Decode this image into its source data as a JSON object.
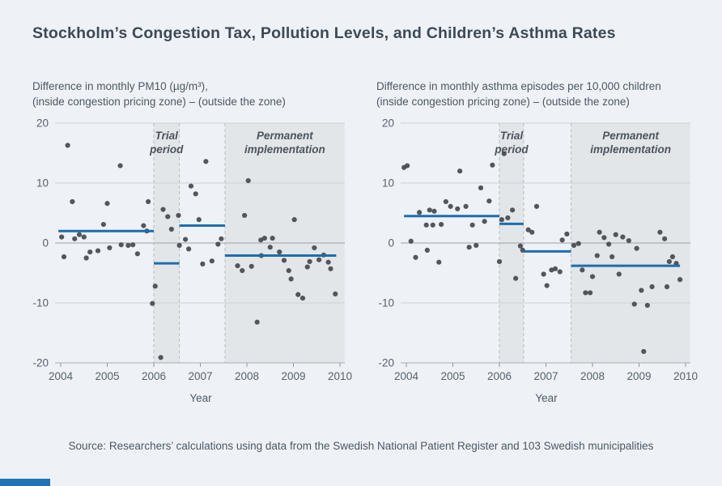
{
  "page": {
    "title": "Stockholm’s Congestion Tax, Pollution Levels, and Children’s Asthma Rates",
    "source": "Source: Researchers’ calculations using data from the Swedish National Patient Register and 103 Swedish municipalities",
    "background_color": "#eef2f7",
    "accent_color": "#2273b6"
  },
  "style": {
    "point_color": "#45494d",
    "mean_line_color": "#1e6dad",
    "band_fill": "#e3e6e9",
    "band_dash_color": "#b6bcc2",
    "grid_color": "#cdd2d7",
    "zero_line_color": "#9aa1a8",
    "axis_color": "#a8aeb4",
    "tick_color": "#8d959c",
    "tick_label_color": "#57606a",
    "band_label_color": "#4b545c"
  },
  "chart_data": [
    {
      "type": "scatter",
      "title_lines": [
        "Difference in monthly PM10 (µg/m³),",
        "(inside congestion pricing zone) – (outside the zone)"
      ],
      "xlabel": "Year",
      "xlim": [
        2003.88,
        2010.1
      ],
      "ylim": [
        -20,
        20
      ],
      "xticks": [
        2004,
        2005,
        2006,
        2007,
        2008,
        2009,
        2010
      ],
      "yticks": [
        20,
        10,
        0,
        -10,
        -20
      ],
      "grid": true,
      "bands": [
        {
          "label_lines": [
            "Trial",
            "period"
          ],
          "x0": 2006.0,
          "x1": 2006.55
        },
        {
          "label_lines": [
            "Permanent",
            "implementation"
          ],
          "x0": 2007.53,
          "x1": 2010.1
        }
      ],
      "mean_segments": [
        {
          "x0": 2003.95,
          "x1": 2006.0,
          "y": 2.0
        },
        {
          "x0": 2006.0,
          "x1": 2006.55,
          "y": -3.4
        },
        {
          "x0": 2006.55,
          "x1": 2007.53,
          "y": 2.9
        },
        {
          "x0": 2007.53,
          "x1": 2009.92,
          "y": -2.1
        }
      ],
      "points": [
        [
          2004.02,
          1.0
        ],
        [
          2004.07,
          -2.3
        ],
        [
          2004.15,
          16.3
        ],
        [
          2004.25,
          6.9
        ],
        [
          2004.3,
          0.7
        ],
        [
          2004.4,
          1.4
        ],
        [
          2004.5,
          1.0
        ],
        [
          2004.55,
          -2.5
        ],
        [
          2004.63,
          -1.5
        ],
        [
          2004.8,
          -1.3
        ],
        [
          2004.92,
          3.1
        ],
        [
          2005.0,
          6.6
        ],
        [
          2005.05,
          -0.8
        ],
        [
          2005.28,
          12.9
        ],
        [
          2005.3,
          -0.3
        ],
        [
          2005.45,
          -0.4
        ],
        [
          2005.55,
          -0.3
        ],
        [
          2005.65,
          -1.8
        ],
        [
          2005.78,
          2.9
        ],
        [
          2005.85,
          2.0
        ],
        [
          2005.88,
          6.9
        ],
        [
          2005.97,
          -10.1
        ],
        [
          2006.03,
          -7.2
        ],
        [
          2006.15,
          -19.1
        ],
        [
          2006.2,
          5.6
        ],
        [
          2006.3,
          4.4
        ],
        [
          2006.38,
          2.3
        ],
        [
          2006.53,
          4.6
        ],
        [
          2006.55,
          -0.4
        ],
        [
          2006.68,
          0.6
        ],
        [
          2006.75,
          -1.0
        ],
        [
          2006.8,
          9.5
        ],
        [
          2006.9,
          8.2
        ],
        [
          2006.97,
          3.9
        ],
        [
          2007.05,
          -3.5
        ],
        [
          2007.12,
          13.6
        ],
        [
          2007.25,
          -3.0
        ],
        [
          2007.38,
          -0.2
        ],
        [
          2007.45,
          0.7
        ],
        [
          2007.8,
          -3.8
        ],
        [
          2007.9,
          -4.6
        ],
        [
          2007.95,
          4.6
        ],
        [
          2008.03,
          10.4
        ],
        [
          2008.1,
          -3.9
        ],
        [
          2008.22,
          -13.2
        ],
        [
          2008.3,
          0.5
        ],
        [
          2008.31,
          -2.1
        ],
        [
          2008.38,
          0.8
        ],
        [
          2008.5,
          -0.7
        ],
        [
          2008.55,
          0.8
        ],
        [
          2008.7,
          -1.5
        ],
        [
          2008.8,
          -2.9
        ],
        [
          2008.9,
          -4.6
        ],
        [
          2008.95,
          -6.0
        ],
        [
          2009.02,
          3.9
        ],
        [
          2009.1,
          -8.6
        ],
        [
          2009.2,
          -9.2
        ],
        [
          2009.3,
          -4.0
        ],
        [
          2009.35,
          -3.1
        ],
        [
          2009.45,
          -0.8
        ],
        [
          2009.55,
          -2.8
        ],
        [
          2009.65,
          -2.0
        ],
        [
          2009.75,
          -3.2
        ],
        [
          2009.8,
          -4.3
        ],
        [
          2009.9,
          -8.5
        ]
      ]
    },
    {
      "type": "scatter",
      "title_lines": [
        "Difference in monthly asthma episodes per 10,000 children",
        "(inside congestion pricing zone) – (outside the zone)"
      ],
      "xlabel": "Year",
      "xlim": [
        2003.88,
        2010.1
      ],
      "ylim": [
        -20,
        20
      ],
      "xticks": [
        2004,
        2005,
        2006,
        2007,
        2008,
        2009,
        2010
      ],
      "yticks": [
        20,
        10,
        0,
        -10,
        -20
      ],
      "grid": true,
      "bands": [
        {
          "label_lines": [
            "Trial",
            "period"
          ],
          "x0": 2006.0,
          "x1": 2006.52
        },
        {
          "label_lines": [
            "Permanent",
            "implementation"
          ],
          "x0": 2007.54,
          "x1": 2010.1
        }
      ],
      "mean_segments": [
        {
          "x0": 2003.95,
          "x1": 2006.0,
          "y": 4.5
        },
        {
          "x0": 2006.0,
          "x1": 2006.52,
          "y": 3.2
        },
        {
          "x0": 2006.52,
          "x1": 2007.54,
          "y": -1.4
        },
        {
          "x0": 2007.54,
          "x1": 2009.88,
          "y": -3.8
        }
      ],
      "points": [
        [
          2003.95,
          12.6
        ],
        [
          2004.02,
          12.9
        ],
        [
          2004.1,
          0.3
        ],
        [
          2004.2,
          -2.4
        ],
        [
          2004.28,
          5.1
        ],
        [
          2004.43,
          3.0
        ],
        [
          2004.45,
          -1.2
        ],
        [
          2004.5,
          5.5
        ],
        [
          2004.57,
          3.0
        ],
        [
          2004.6,
          5.3
        ],
        [
          2004.7,
          -3.2
        ],
        [
          2004.75,
          3.1
        ],
        [
          2004.85,
          6.9
        ],
        [
          2004.95,
          6.1
        ],
        [
          2005.1,
          5.7
        ],
        [
          2005.15,
          12.0
        ],
        [
          2005.28,
          6.1
        ],
        [
          2005.35,
          -0.7
        ],
        [
          2005.42,
          3.0
        ],
        [
          2005.5,
          -0.4
        ],
        [
          2005.6,
          9.2
        ],
        [
          2005.68,
          3.6
        ],
        [
          2005.78,
          7.0
        ],
        [
          2005.85,
          13.0
        ],
        [
          2006.0,
          -3.1
        ],
        [
          2006.05,
          3.9
        ],
        [
          2006.1,
          14.9
        ],
        [
          2006.18,
          4.2
        ],
        [
          2006.28,
          5.5
        ],
        [
          2006.35,
          -5.9
        ],
        [
          2006.45,
          -0.5
        ],
        [
          2006.5,
          -1.2
        ],
        [
          2006.62,
          2.2
        ],
        [
          2006.7,
          1.8
        ],
        [
          2006.8,
          6.1
        ],
        [
          2006.95,
          -5.2
        ],
        [
          2007.02,
          -7.1
        ],
        [
          2007.12,
          -4.5
        ],
        [
          2007.2,
          -4.3
        ],
        [
          2007.3,
          -4.8
        ],
        [
          2007.35,
          0.5
        ],
        [
          2007.45,
          1.5
        ],
        [
          2007.6,
          -0.4
        ],
        [
          2007.7,
          -0.1
        ],
        [
          2007.78,
          -4.5
        ],
        [
          2007.85,
          -8.3
        ],
        [
          2007.95,
          -8.3
        ],
        [
          2008.0,
          -5.6
        ],
        [
          2008.1,
          -2.1
        ],
        [
          2008.15,
          1.8
        ],
        [
          2008.25,
          0.9
        ],
        [
          2008.35,
          -0.2
        ],
        [
          2008.42,
          -2.3
        ],
        [
          2008.5,
          1.4
        ],
        [
          2008.57,
          -5.2
        ],
        [
          2008.65,
          1.0
        ],
        [
          2008.78,
          0.4
        ],
        [
          2008.9,
          -10.2
        ],
        [
          2008.95,
          -0.9
        ],
        [
          2009.05,
          -7.9
        ],
        [
          2009.1,
          -18.1
        ],
        [
          2009.18,
          -10.4
        ],
        [
          2009.28,
          -7.3
        ],
        [
          2009.45,
          1.8
        ],
        [
          2009.55,
          0.7
        ],
        [
          2009.6,
          -7.3
        ],
        [
          2009.65,
          -3.1
        ],
        [
          2009.72,
          -2.3
        ],
        [
          2009.8,
          -3.4
        ],
        [
          2009.88,
          -6.1
        ]
      ]
    }
  ]
}
